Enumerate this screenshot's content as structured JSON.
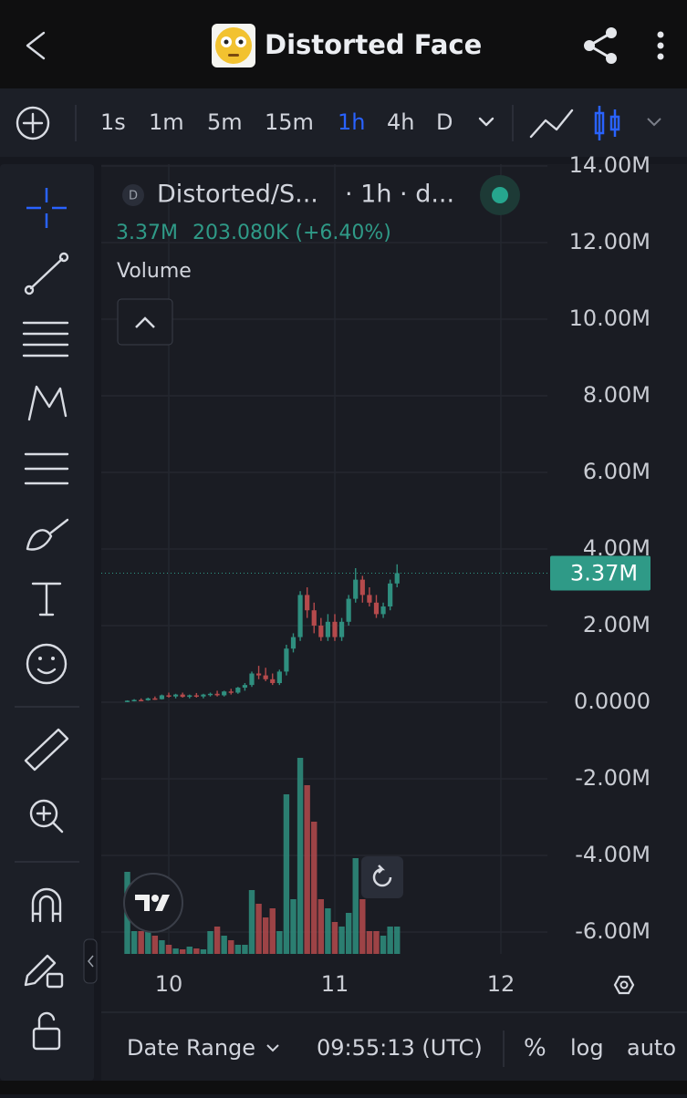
{
  "header": {
    "title": "Distorted Face"
  },
  "toolbar": {
    "intervals": [
      "1s",
      "1m",
      "5m",
      "15m",
      "1h",
      "4h",
      "D"
    ]
  },
  "legend": {
    "badge": "D",
    "symbol": "Distorted/S...",
    "interval": "· 1h · d...",
    "price": "3.37M",
    "change": "203.080K (+6.40%)",
    "study": "Volume"
  },
  "footer": {
    "date_range": "Date Range",
    "time": "09:55:13 (UTC)",
    "percent": "%",
    "log": "log",
    "auto": "auto"
  },
  "chart_data": {
    "type": "candlestick",
    "up_color": "#2f8f7f",
    "down_color": "#b54a4c",
    "x": [
      0,
      1,
      2,
      3,
      4,
      5,
      6,
      7,
      8,
      9,
      10,
      11,
      12,
      13,
      14,
      15,
      16,
      17,
      18,
      19,
      20,
      21,
      22,
      23,
      24,
      25,
      26,
      27,
      28,
      29,
      30,
      31,
      32,
      33,
      34,
      35,
      36,
      37,
      38,
      39
    ],
    "xlim": [
      -3.76,
      60.73
    ],
    "xticks": [
      {
        "value": 6,
        "label": "10"
      },
      {
        "value": 30,
        "label": "11"
      },
      {
        "value": 54,
        "label": "12"
      }
    ],
    "ylim": [
      -6571000,
      14238000
    ],
    "yticks": [
      {
        "value": -6000000,
        "label": "-6.00M"
      },
      {
        "value": -4000000,
        "label": "-4.00M"
      },
      {
        "value": -2000000,
        "label": "-2.00M"
      },
      {
        "value": 0,
        "label": "0.0000"
      },
      {
        "value": 2000000,
        "label": "2.00M"
      },
      {
        "value": 4000000,
        "label": "4.00M"
      },
      {
        "value": 6000000,
        "label": "6.00M"
      },
      {
        "value": 8000000,
        "label": "8.00M"
      },
      {
        "value": 10000000,
        "label": "10.00M"
      },
      {
        "value": 12000000,
        "label": "12.00M"
      },
      {
        "value": 14000000,
        "label": "14.00M"
      }
    ],
    "grid": true,
    "candles": [
      [
        20000,
        50000,
        0,
        40000
      ],
      [
        40000,
        80000,
        20000,
        60000
      ],
      [
        60000,
        100000,
        30000,
        50000
      ],
      [
        50000,
        120000,
        40000,
        100000
      ],
      [
        100000,
        150000,
        60000,
        80000
      ],
      [
        80000,
        200000,
        70000,
        180000
      ],
      [
        180000,
        250000,
        120000,
        150000
      ],
      [
        150000,
        220000,
        100000,
        200000
      ],
      [
        200000,
        250000,
        120000,
        140000
      ],
      [
        140000,
        200000,
        100000,
        180000
      ],
      [
        180000,
        240000,
        120000,
        150000
      ],
      [
        150000,
        220000,
        100000,
        200000
      ],
      [
        200000,
        250000,
        150000,
        220000
      ],
      [
        220000,
        300000,
        150000,
        180000
      ],
      [
        180000,
        300000,
        150000,
        280000
      ],
      [
        280000,
        350000,
        200000,
        250000
      ],
      [
        250000,
        400000,
        220000,
        380000
      ],
      [
        380000,
        500000,
        300000,
        450000
      ],
      [
        450000,
        800000,
        400000,
        750000
      ],
      [
        750000,
        950000,
        600000,
        700000
      ],
      [
        700000,
        900000,
        550000,
        600000
      ],
      [
        600000,
        750000,
        450000,
        500000
      ],
      [
        500000,
        850000,
        450000,
        800000
      ],
      [
        800000,
        1500000,
        700000,
        1400000
      ],
      [
        1400000,
        1800000,
        1300000,
        1700000
      ],
      [
        1700000,
        2900000,
        1600000,
        2800000
      ],
      [
        2800000,
        3000000,
        2200000,
        2400000
      ],
      [
        2400000,
        2600000,
        1800000,
        2000000
      ],
      [
        2000000,
        2200000,
        1600000,
        1700000
      ],
      [
        1700000,
        2300000,
        1600000,
        2100000
      ],
      [
        2100000,
        2300000,
        1600000,
        1700000
      ],
      [
        1700000,
        2200000,
        1600000,
        2100000
      ],
      [
        2100000,
        2800000,
        2000000,
        2700000
      ],
      [
        2700000,
        3500000,
        2600000,
        3200000
      ],
      [
        3200000,
        3300000,
        2600000,
        2800000
      ],
      [
        2800000,
        3000000,
        2500000,
        2600000
      ],
      [
        2600000,
        2800000,
        2200000,
        2300000
      ],
      [
        2300000,
        2600000,
        2200000,
        2500000
      ],
      [
        2500000,
        3200000,
        2400000,
        3100000
      ],
      [
        3100000,
        3600000,
        3000000,
        3370000
      ]
    ],
    "volume": {
      "name": "Volume",
      "values": [
        90,
        25,
        25,
        25,
        20,
        15,
        10,
        6,
        5,
        8,
        6,
        5,
        25,
        30,
        20,
        15,
        10,
        10,
        70,
        55,
        40,
        50,
        25,
        175,
        60,
        215,
        185,
        145,
        60,
        50,
        35,
        30,
        45,
        105,
        60,
        25,
        25,
        20,
        30,
        30
      ]
    },
    "price_tag": {
      "value": 3370000,
      "label": "3.37M"
    }
  }
}
